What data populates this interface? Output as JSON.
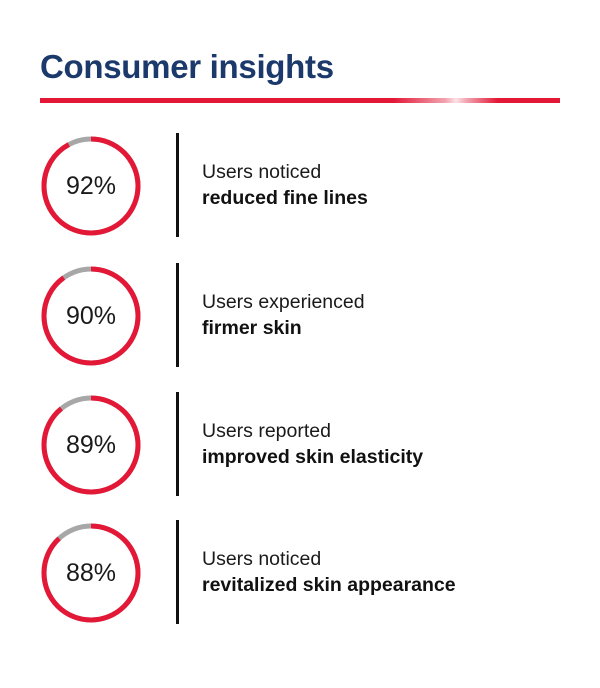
{
  "title": "Consumer insights",
  "colors": {
    "title": "#1b3a6b",
    "accent": "#e31837",
    "ring_track": "#a7a7a7",
    "text": "#1a1a1a"
  },
  "insights": [
    {
      "value": 92,
      "percent_label": "92%",
      "line1": "Users noticed",
      "line2": "reduced fine lines"
    },
    {
      "value": 90,
      "percent_label": "90%",
      "line1": "Users experienced",
      "line2": "firmer skin"
    },
    {
      "value": 89,
      "percent_label": "89%",
      "line1": "Users reported",
      "line2": "improved skin elasticity"
    },
    {
      "value": 88,
      "percent_label": "88%",
      "line1": "Users noticed",
      "line2": "revitalized skin appearance"
    }
  ]
}
